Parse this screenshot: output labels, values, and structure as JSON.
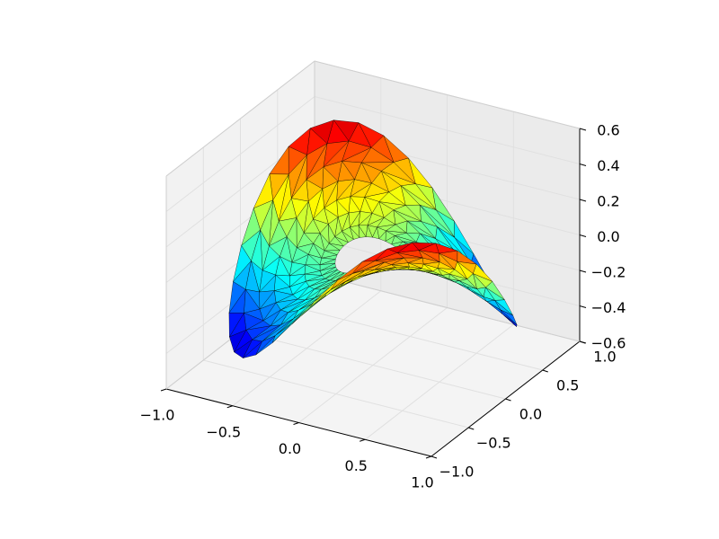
{
  "chart_data": {
    "type": "surface",
    "title": "",
    "xlabel": "",
    "ylabel": "",
    "zlabel": "",
    "colormap": "jet",
    "function": "z = sin(-x*y)",
    "domain": "annulus",
    "radius_range": [
      0.25,
      0.95
    ],
    "xlim": [
      -1.0,
      1.0
    ],
    "ylim": [
      -1.0,
      1.0
    ],
    "zlim": [
      -0.6,
      0.6
    ],
    "grid": true,
    "x_ticks": [
      {
        "value": -1.0,
        "label": "−1.0"
      },
      {
        "value": -0.5,
        "label": "−0.5"
      },
      {
        "value": 0.0,
        "label": "0.0"
      },
      {
        "value": 0.5,
        "label": "0.5"
      },
      {
        "value": 1.0,
        "label": "1.0"
      }
    ],
    "y_ticks": [
      {
        "value": -1.0,
        "label": "−1.0"
      },
      {
        "value": -0.5,
        "label": "−0.5"
      },
      {
        "value": 0.0,
        "label": "0.0"
      },
      {
        "value": 0.5,
        "label": "0.5"
      },
      {
        "value": 1.0,
        "label": "1.0"
      }
    ],
    "z_ticks": [
      {
        "value": -0.6,
        "label": "−0.6"
      },
      {
        "value": -0.4,
        "label": "−0.4"
      },
      {
        "value": -0.2,
        "label": "−0.2"
      },
      {
        "value": 0.0,
        "label": "0.0"
      },
      {
        "value": 0.2,
        "label": "0.2"
      },
      {
        "value": 0.4,
        "label": "0.4"
      },
      {
        "value": 0.6,
        "label": "0.6"
      }
    ],
    "pane_color": "#f2f2f2",
    "grid_color": "#e6e6e6",
    "edge_color": "#000000"
  }
}
